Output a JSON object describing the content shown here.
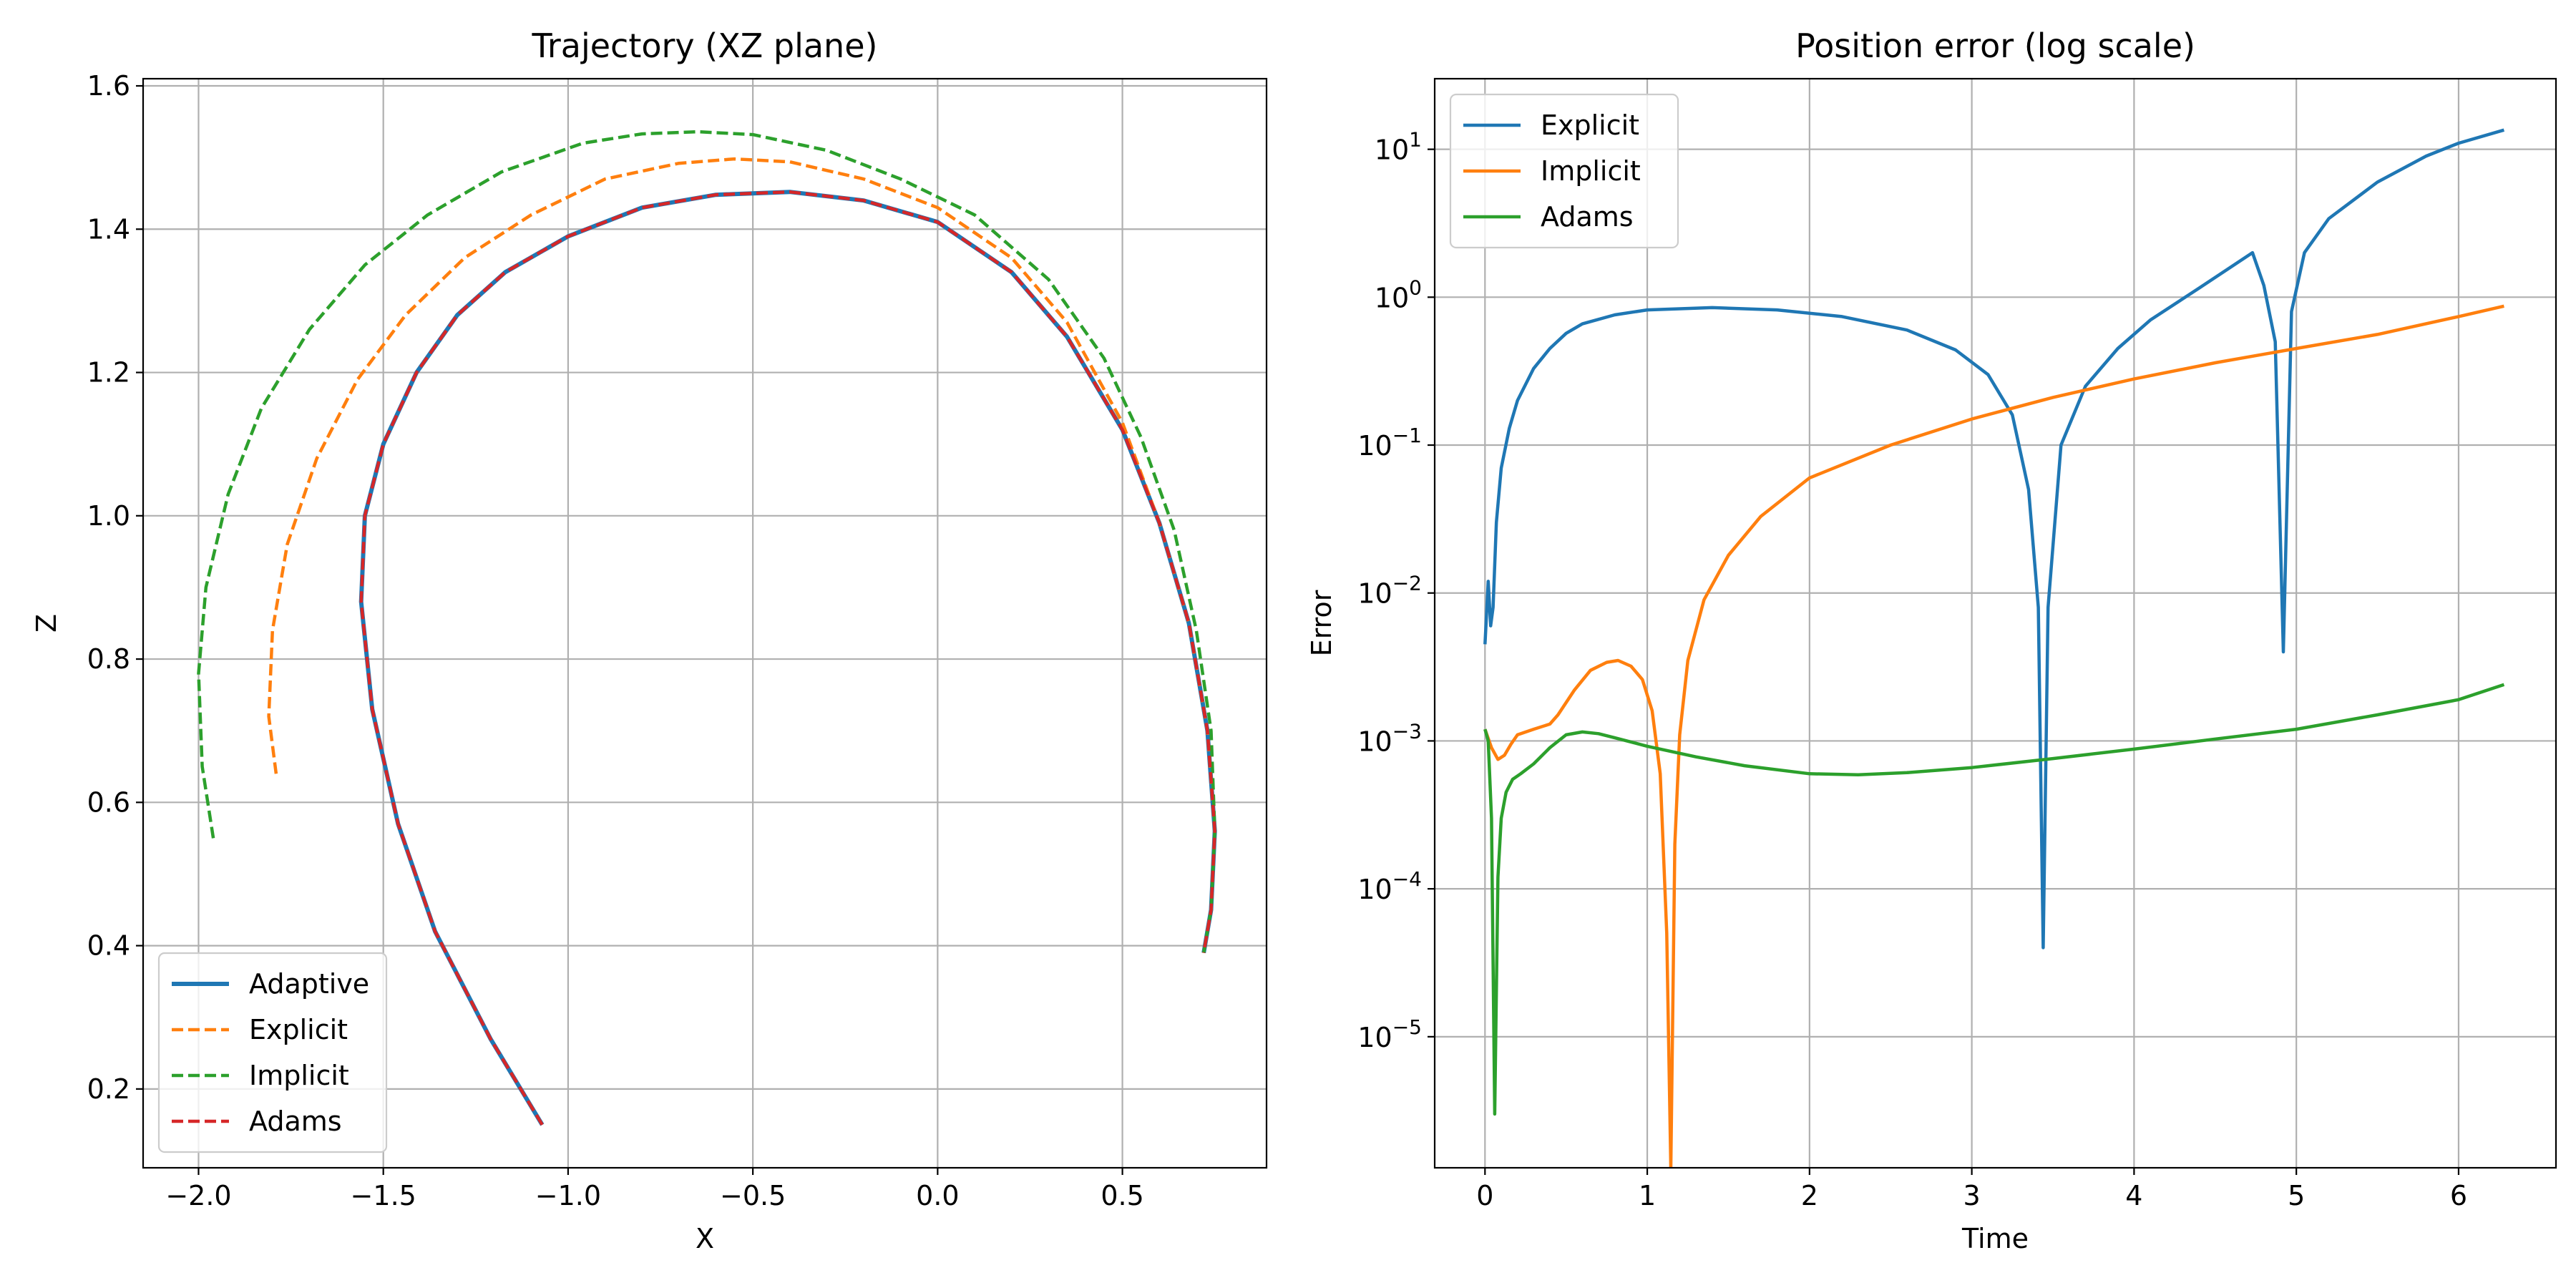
{
  "chart_data": [
    {
      "type": "line",
      "title": "Trajectory (XZ plane)",
      "xlabel": "X",
      "ylabel": "Z",
      "xlim": [
        -2.15,
        0.89
      ],
      "ylim": [
        0.09,
        1.61
      ],
      "xticks": [
        -2.0,
        -1.5,
        -1.0,
        -0.5,
        0.0,
        0.5
      ],
      "xtick_labels": [
        "−2.0",
        "−1.5",
        "−1.0",
        "−0.5",
        "0.0",
        "0.5"
      ],
      "yticks": [
        0.2,
        0.4,
        0.6,
        0.8,
        1.0,
        1.2,
        1.4,
        1.6
      ],
      "ytick_labels": [
        "0.2",
        "0.4",
        "0.6",
        "0.8",
        "1.0",
        "1.2",
        "1.4",
        "1.6"
      ],
      "grid": true,
      "legend_position": "lower-left",
      "series": [
        {
          "name": "Adaptive",
          "color": "#1f77b4",
          "style": "solid",
          "x": [
            -1.07,
            -1.21,
            -1.36,
            -1.46,
            -1.53,
            -1.56,
            -1.55,
            -1.5,
            -1.41,
            -1.3,
            -1.17,
            -1.0,
            -0.8,
            -0.6,
            -0.4,
            -0.2,
            0.0,
            0.2,
            0.35,
            0.5,
            0.6,
            0.68,
            0.73,
            0.75,
            0.74,
            0.72
          ],
          "y": [
            0.15,
            0.27,
            0.42,
            0.57,
            0.73,
            0.88,
            1.0,
            1.1,
            1.2,
            1.28,
            1.34,
            1.39,
            1.43,
            1.448,
            1.452,
            1.44,
            1.41,
            1.34,
            1.25,
            1.12,
            0.99,
            0.85,
            0.7,
            0.56,
            0.45,
            0.39
          ]
        },
        {
          "name": "Explicit",
          "color": "#ff7f0e",
          "style": "dashed",
          "x": [
            -1.79,
            -1.81,
            -1.8,
            -1.76,
            -1.68,
            -1.57,
            -1.44,
            -1.28,
            -1.1,
            -0.9,
            -0.7,
            -0.55,
            -0.4,
            -0.2,
            0.0,
            0.2,
            0.35,
            0.5,
            0.6,
            0.68,
            0.73,
            0.75,
            0.74,
            0.72
          ],
          "y": [
            0.64,
            0.72,
            0.84,
            0.96,
            1.08,
            1.19,
            1.28,
            1.36,
            1.42,
            1.47,
            1.492,
            1.498,
            1.494,
            1.47,
            1.43,
            1.36,
            1.27,
            1.13,
            0.99,
            0.85,
            0.7,
            0.56,
            0.45,
            0.39
          ]
        },
        {
          "name": "Implicit",
          "color": "#2ca02c",
          "style": "dashed",
          "x": [
            -1.96,
            -1.99,
            -2.0,
            -1.98,
            -1.92,
            -1.83,
            -1.7,
            -1.55,
            -1.38,
            -1.18,
            -0.96,
            -0.8,
            -0.65,
            -0.5,
            -0.3,
            -0.1,
            0.1,
            0.3,
            0.45,
            0.55,
            0.64,
            0.7,
            0.74,
            0.75,
            0.74,
            0.72
          ],
          "y": [
            0.55,
            0.65,
            0.78,
            0.9,
            1.03,
            1.15,
            1.26,
            1.35,
            1.42,
            1.48,
            1.52,
            1.533,
            1.536,
            1.532,
            1.51,
            1.47,
            1.42,
            1.33,
            1.22,
            1.11,
            0.98,
            0.84,
            0.7,
            0.56,
            0.45,
            0.39
          ]
        },
        {
          "name": "Adams",
          "color": "#d62728",
          "style": "dashed",
          "x": [
            -1.07,
            -1.21,
            -1.36,
            -1.46,
            -1.53,
            -1.56,
            -1.55,
            -1.5,
            -1.41,
            -1.3,
            -1.17,
            -1.0,
            -0.8,
            -0.6,
            -0.4,
            -0.2,
            0.0,
            0.2,
            0.35,
            0.5,
            0.6,
            0.68,
            0.73,
            0.75,
            0.74,
            0.72
          ],
          "y": [
            0.15,
            0.27,
            0.42,
            0.57,
            0.73,
            0.88,
            1.0,
            1.1,
            1.2,
            1.28,
            1.34,
            1.39,
            1.43,
            1.448,
            1.452,
            1.44,
            1.41,
            1.34,
            1.25,
            1.12,
            0.99,
            0.85,
            0.7,
            0.56,
            0.45,
            0.39
          ]
        }
      ]
    },
    {
      "type": "line",
      "title": "Position error (log scale)",
      "xlabel": "Time",
      "ylabel": "Error",
      "yscale": "log",
      "xlim": [
        -0.31,
        6.6
      ],
      "ylim": [
        1.3e-06,
        30
      ],
      "xticks": [
        0,
        1,
        2,
        3,
        4,
        5,
        6
      ],
      "xtick_labels": [
        "0",
        "1",
        "2",
        "3",
        "4",
        "5",
        "6"
      ],
      "yticks": [
        1e-05,
        0.0001,
        0.001,
        0.01,
        0.1,
        1,
        10
      ],
      "ytick_bases": [
        "10",
        "10",
        "10",
        "10",
        "10",
        "10",
        "10"
      ],
      "ytick_exponents": [
        "−5",
        "−4",
        "−3",
        "−2",
        "−1",
        "0",
        "1"
      ],
      "grid": true,
      "legend_position": "upper-left",
      "series": [
        {
          "name": "Explicit",
          "color": "#1f77b4",
          "style": "solid",
          "x": [
            0.0,
            0.02,
            0.035,
            0.05,
            0.07,
            0.1,
            0.15,
            0.2,
            0.3,
            0.4,
            0.5,
            0.6,
            0.8,
            1.0,
            1.4,
            1.8,
            2.2,
            2.6,
            2.9,
            3.1,
            3.25,
            3.35,
            3.41,
            3.44,
            3.47,
            3.55,
            3.7,
            3.9,
            4.1,
            4.4,
            4.73,
            4.8,
            4.87,
            4.92,
            4.97,
            5.05,
            5.2,
            5.5,
            5.8,
            6.0,
            6.28
          ],
          "y": [
            0.0045,
            0.012,
            0.006,
            0.008,
            0.03,
            0.07,
            0.13,
            0.2,
            0.33,
            0.45,
            0.57,
            0.66,
            0.76,
            0.82,
            0.85,
            0.82,
            0.74,
            0.6,
            0.44,
            0.3,
            0.16,
            0.05,
            0.008,
            4e-05,
            0.008,
            0.1,
            0.25,
            0.45,
            0.7,
            1.15,
            2.0,
            1.2,
            0.5,
            0.004,
            0.8,
            2.0,
            3.4,
            6.0,
            9.0,
            11.0,
            13.5
          ]
        },
        {
          "name": "Implicit",
          "color": "#ff7f0e",
          "style": "solid",
          "x": [
            0.0,
            0.04,
            0.08,
            0.12,
            0.16,
            0.2,
            0.3,
            0.4,
            0.45,
            0.55,
            0.65,
            0.75,
            0.82,
            0.9,
            0.97,
            1.03,
            1.08,
            1.12,
            1.145,
            1.17,
            1.2,
            1.25,
            1.35,
            1.5,
            1.7,
            2.0,
            2.5,
            3.0,
            3.5,
            4.0,
            4.5,
            5.0,
            5.5,
            6.0,
            6.28
          ],
          "y": [
            0.0012,
            0.0009,
            0.00075,
            0.0008,
            0.00095,
            0.0011,
            0.0012,
            0.0013,
            0.0015,
            0.0022,
            0.003,
            0.0034,
            0.0035,
            0.0032,
            0.0026,
            0.0016,
            0.0006,
            5e-05,
            1.3e-06,
            0.0002,
            0.0011,
            0.0035,
            0.009,
            0.018,
            0.033,
            0.06,
            0.1,
            0.15,
            0.21,
            0.28,
            0.36,
            0.45,
            0.56,
            0.74,
            0.87
          ]
        },
        {
          "name": "Adams",
          "color": "#2ca02c",
          "style": "solid",
          "x": [
            0.0,
            0.02,
            0.04,
            0.06,
            0.07,
            0.08,
            0.1,
            0.13,
            0.17,
            0.22,
            0.3,
            0.4,
            0.5,
            0.6,
            0.7,
            0.8,
            1.0,
            1.3,
            1.6,
            2.0,
            2.3,
            2.6,
            3.0,
            3.5,
            4.0,
            4.5,
            5.0,
            5.5,
            6.0,
            6.28
          ],
          "y": [
            0.0012,
            0.001,
            0.0003,
            3e-06,
            2e-05,
            0.00012,
            0.0003,
            0.00045,
            0.00055,
            0.0006,
            0.0007,
            0.0009,
            0.0011,
            0.00115,
            0.00112,
            0.00105,
            0.00092,
            0.00078,
            0.00068,
            0.0006,
            0.00059,
            0.00061,
            0.00066,
            0.00076,
            0.00088,
            0.00103,
            0.0012,
            0.0015,
            0.0019,
            0.0024
          ]
        }
      ]
    }
  ]
}
